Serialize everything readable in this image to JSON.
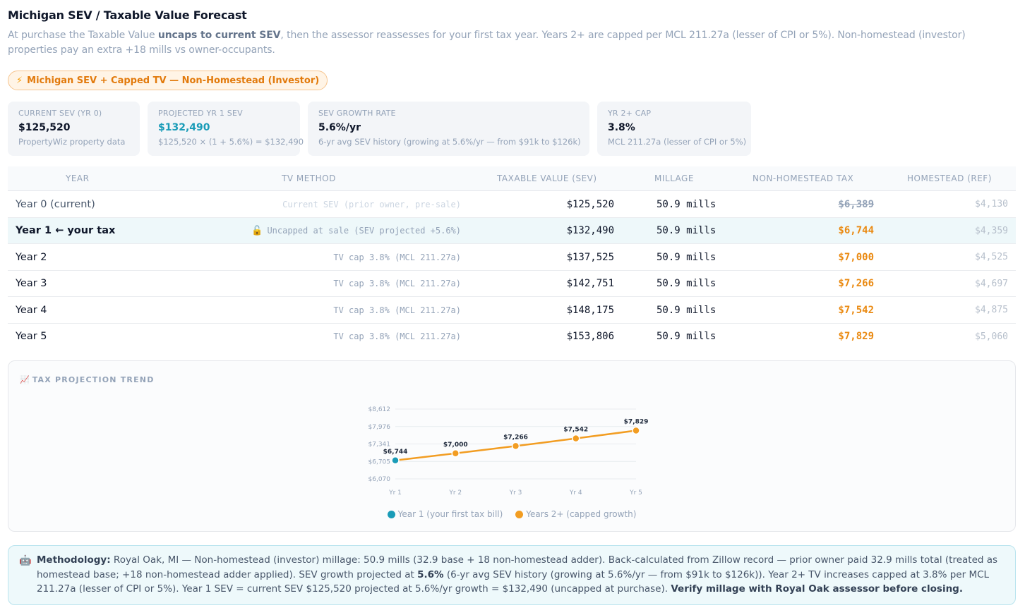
{
  "header": {
    "title": "Michigan SEV / Taxable Value Forecast",
    "subtitle_pre": "At purchase the Taxable Value ",
    "subtitle_bold": "uncaps to current SEV",
    "subtitle_post": ", then the assessor reassesses for your first tax year. Years 2+ are capped per MCL 211.27a (lesser of CPI or 5%). Non-homestead (investor) properties pay an extra +18 mills vs owner-occupants."
  },
  "badge": {
    "icon": "lightning-icon",
    "label": "Michigan SEV + Capped TV — Non-Homestead (Investor)"
  },
  "cards": [
    {
      "label": "CURRENT SEV (YR 0)",
      "value": "$125,520",
      "sub": "PropertyWiz property data"
    },
    {
      "label": "PROJECTED YR 1 SEV",
      "value": "$132,490",
      "sub": "$125,520 × (1 + 5.6%) = $132,490"
    },
    {
      "label": "SEV GROWTH RATE",
      "value": "5.6%/yr",
      "sub": "6-yr avg SEV history (growing at 5.6%/yr — from $91k to $126k)"
    },
    {
      "label": "YR 2+ CAP",
      "value": "3.8%",
      "sub": "MCL 211.27a (lesser of CPI or 5%)"
    }
  ],
  "table": {
    "headers": [
      "YEAR",
      "TV METHOD",
      "TAXABLE VALUE (SEV)",
      "MILLAGE",
      "NON-HOMESTEAD TAX",
      "HOMESTEAD (REF)"
    ],
    "rows": [
      {
        "year": "Year 0 (current)",
        "method": "Current SEV (prior owner, pre-sale)",
        "tv": "$125,520",
        "millage": "50.9 mills",
        "nh": "$6,389",
        "hs": "$4,130"
      },
      {
        "year": "Year 1 ← your tax",
        "method": "Uncapped at sale (SEV projected +5.6%)",
        "tv": "$132,490",
        "millage": "50.9 mills",
        "nh": "$6,744",
        "hs": "$4,359"
      },
      {
        "year": "Year 2",
        "method": "TV cap 3.8% (MCL 211.27a)",
        "tv": "$137,525",
        "millage": "50.9 mills",
        "nh": "$7,000",
        "hs": "$4,525"
      },
      {
        "year": "Year 3",
        "method": "TV cap 3.8% (MCL 211.27a)",
        "tv": "$142,751",
        "millage": "50.9 mills",
        "nh": "$7,266",
        "hs": "$4,697"
      },
      {
        "year": "Year 4",
        "method": "TV cap 3.8% (MCL 211.27a)",
        "tv": "$148,175",
        "millage": "50.9 mills",
        "nh": "$7,542",
        "hs": "$4,875"
      },
      {
        "year": "Year 5",
        "method": "TV cap 3.8% (MCL 211.27a)",
        "tv": "$153,806",
        "millage": "50.9 mills",
        "nh": "$7,829",
        "hs": "$5,060"
      }
    ]
  },
  "chart": {
    "title": "TAX PROJECTION TREND",
    "icon": "chart-icon"
  },
  "chart_data": {
    "type": "line",
    "x": [
      "Yr 1",
      "Yr 2",
      "Yr 3",
      "Yr 4",
      "Yr 5"
    ],
    "values": [
      6744,
      7000,
      7266,
      7542,
      7829
    ],
    "data_labels": [
      "$6,744",
      "$7,000",
      "$7,266",
      "$7,542",
      "$7,829"
    ],
    "yticks": [
      6070,
      6705,
      7341,
      7976,
      8612
    ],
    "ytick_labels": [
      "$6,070",
      "$6,705",
      "$7,341",
      "$7,976",
      "$8,612"
    ],
    "ylim": [
      6070,
      8612
    ],
    "grid": true,
    "legend": [
      {
        "label": "Year 1 (your first tax bill)",
        "color": "#1a9cb8"
      },
      {
        "label": "Years 2+ (capped growth)",
        "color": "#f29d22"
      }
    ],
    "legend_position": "bottom",
    "line_color": "#f29d22"
  },
  "methodology": {
    "icon": "robot-icon",
    "label": "Methodology:",
    "text1": " Royal Oak, MI — Non-homestead (investor) millage: 50.9 mills (32.9 base + 18 non-homestead adder). Back-calculated from Zillow record — prior owner paid 32.9 mills total (treated as homestead base; +18 non-homestead adder applied). SEV growth projected at ",
    "rate": "5.6%",
    "text2": " (6-yr avg SEV history (growing at 5.6%/yr — from $91k to $126k)). Year 2+ TV increases capped at 3.8% per MCL 211.27a (lesser of CPI or 5%). Year 1 SEV = current SEV $125,520 projected at 5.6%/yr growth = $132,490 (uncapped at purchase). ",
    "verify": "Verify millage with Royal Oak assessor before closing."
  }
}
